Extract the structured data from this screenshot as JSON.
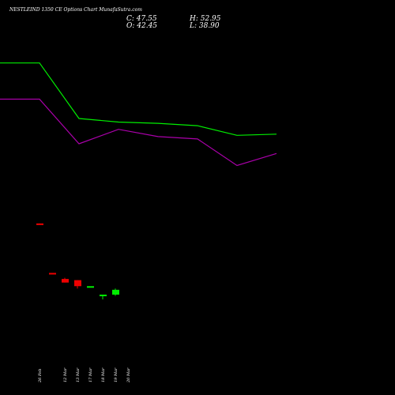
{
  "header": {
    "title": "NESTLEIND 1350  CE Options  Chart MunafaSutra.com",
    "c_label": "C: 47.55",
    "h_label": "H: 52.95",
    "o_label": "O: 42.45",
    "l_label": "L: 38.90"
  },
  "colors": {
    "background": "#000000",
    "up": "#00ee00",
    "down": "#ee0000",
    "line_upper": "#00ee00",
    "line_lower": "#aa00aa",
    "text": "#ffffff"
  },
  "chart_data": {
    "type": "candlestick",
    "title": "NESTLEIND 1350  CE Options  Chart MunafaSutra.com",
    "categories": [
      "26 Feb",
      "",
      "12 Mar",
      "13 Mar",
      "17 Mar",
      "18 Mar",
      "19 Mar",
      "20 Mar"
    ],
    "candles": [
      {
        "date": "26 Feb",
        "open": 116,
        "high": 116,
        "low": 115,
        "close": 115
      },
      {
        "date": "",
        "open": 75,
        "high": 75,
        "low": 74,
        "close": 74
      },
      {
        "date": "12 Mar",
        "open": 70,
        "high": 71,
        "low": 67,
        "close": 67
      },
      {
        "date": "13 Mar",
        "open": 69,
        "high": 69,
        "low": 62,
        "close": 64
      },
      {
        "date": "17 Mar",
        "open": 64,
        "high": 64,
        "low": 64,
        "close": 64
      },
      {
        "date": "18 Mar",
        "open": 56,
        "high": 57,
        "low": 53,
        "close": 57
      },
      {
        "date": "19 Mar",
        "open": 57,
        "high": 62,
        "low": 56,
        "close": 61
      },
      {
        "date": "20 Mar",
        "open": 0,
        "high": 0,
        "low": 0,
        "close": 0
      }
    ],
    "series": [
      {
        "values": [
          249,
          249,
          203,
          200,
          199,
          197,
          189,
          190
        ]
      },
      {
        "values": [
          219,
          219,
          182,
          194,
          188,
          186,
          164,
          174
        ]
      }
    ],
    "ylim": [
      0,
      275
    ],
    "grid": false
  }
}
